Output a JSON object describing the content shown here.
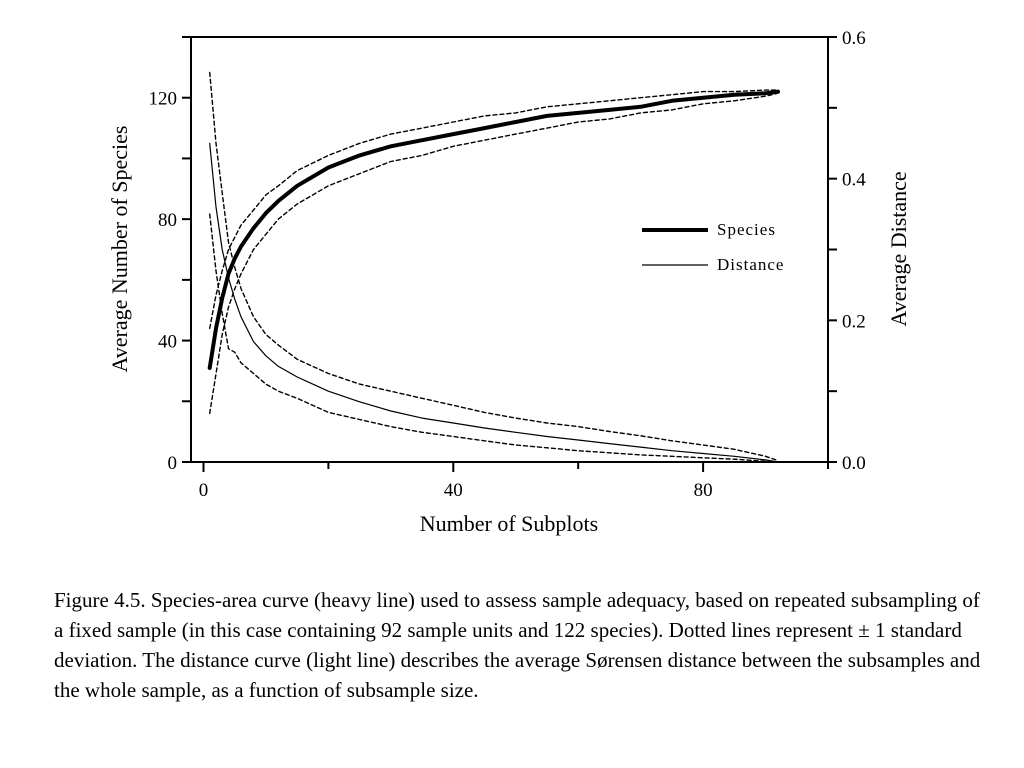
{
  "chart_data": {
    "type": "line",
    "xlabel": "Number of Subplots",
    "ylabel_left": "Average Number of Species",
    "ylabel_right": "Average Distance",
    "xlim": [
      -2,
      100
    ],
    "ylim_left": [
      0,
      140
    ],
    "ylim_right": [
      0,
      0.6
    ],
    "x_ticks": [
      0,
      40,
      80
    ],
    "y_left_ticks": [
      0,
      40,
      80,
      120
    ],
    "y_right_ticks": [
      "0.0",
      "0.2",
      "0.4",
      "0.6"
    ],
    "legend": {
      "placement": "center-right",
      "entries": [
        {
          "label": "Species",
          "style": "heavy"
        },
        {
          "label": "Distance",
          "style": "light"
        }
      ]
    },
    "series": [
      {
        "name": "Species",
        "axis": "left",
        "style": "heavy",
        "x": [
          1,
          2,
          3,
          4,
          5,
          6,
          8,
          10,
          12,
          15,
          20,
          25,
          30,
          35,
          40,
          45,
          50,
          55,
          60,
          65,
          70,
          75,
          80,
          85,
          90,
          92
        ],
        "y": [
          31,
          44,
          54,
          62,
          67,
          71,
          77,
          82,
          86,
          91,
          97,
          101,
          104,
          106,
          108,
          110,
          112,
          114,
          115,
          116,
          117,
          119,
          120,
          121,
          121.5,
          122
        ]
      },
      {
        "name": "Species + 1 SD",
        "axis": "left",
        "style": "dotted",
        "x": [
          1,
          2,
          3,
          4,
          5,
          6,
          8,
          10,
          12,
          15,
          20,
          25,
          30,
          35,
          40,
          45,
          50,
          55,
          60,
          65,
          70,
          75,
          80,
          85,
          90,
          92
        ],
        "y": [
          44,
          55,
          63,
          70,
          74,
          78,
          83,
          88,
          91,
          96,
          101,
          105,
          108,
          110,
          112,
          114,
          115,
          117,
          118,
          119,
          120,
          121,
          122,
          122,
          122.5,
          122.5
        ]
      },
      {
        "name": "Species - 1 SD",
        "axis": "left",
        "style": "dotted",
        "x": [
          1,
          2,
          3,
          4,
          5,
          6,
          8,
          10,
          12,
          15,
          20,
          25,
          30,
          35,
          40,
          45,
          50,
          55,
          60,
          65,
          70,
          75,
          80,
          85,
          90,
          92
        ],
        "y": [
          16,
          29,
          42,
          51,
          57,
          62,
          70,
          75,
          80,
          85,
          91,
          95,
          99,
          101,
          104,
          106,
          108,
          110,
          112,
          113,
          115,
          116,
          118,
          119,
          120.5,
          121.5
        ]
      },
      {
        "name": "Distance",
        "axis": "right",
        "style": "light",
        "x": [
          1,
          2,
          3,
          4,
          5,
          6,
          8,
          10,
          12,
          15,
          20,
          25,
          30,
          35,
          40,
          45,
          50,
          55,
          60,
          65,
          70,
          75,
          80,
          85,
          90,
          92
        ],
        "y": [
          0.45,
          0.36,
          0.3,
          0.26,
          0.23,
          0.205,
          0.17,
          0.15,
          0.135,
          0.12,
          0.1,
          0.085,
          0.072,
          0.062,
          0.055,
          0.048,
          0.042,
          0.036,
          0.031,
          0.026,
          0.021,
          0.016,
          0.012,
          0.008,
          0.003,
          0.0
        ]
      },
      {
        "name": "Distance + 1 SD",
        "axis": "right",
        "style": "dotted",
        "x": [
          1,
          2,
          3,
          4,
          5,
          6,
          8,
          10,
          12,
          15,
          20,
          25,
          30,
          35,
          40,
          45,
          50,
          55,
          60,
          65,
          70,
          75,
          80,
          85,
          90,
          92
        ],
        "y": [
          0.55,
          0.45,
          0.38,
          0.31,
          0.275,
          0.245,
          0.205,
          0.18,
          0.165,
          0.145,
          0.125,
          0.11,
          0.1,
          0.09,
          0.08,
          0.07,
          0.062,
          0.055,
          0.05,
          0.043,
          0.037,
          0.03,
          0.024,
          0.018,
          0.008,
          0.002
        ]
      },
      {
        "name": "Distance - 1 SD",
        "axis": "right",
        "style": "dotted",
        "x": [
          1,
          2,
          3,
          4,
          5,
          6,
          8,
          10,
          12,
          15,
          20,
          25,
          30,
          35,
          40,
          45,
          50,
          55,
          60,
          65,
          70,
          75,
          80,
          85,
          90,
          92
        ],
        "y": [
          0.35,
          0.27,
          0.21,
          0.16,
          0.155,
          0.14,
          0.125,
          0.11,
          0.1,
          0.09,
          0.07,
          0.06,
          0.05,
          0.042,
          0.036,
          0.03,
          0.024,
          0.02,
          0.016,
          0.013,
          0.01,
          0.008,
          0.006,
          0.004,
          0.001,
          0.0
        ]
      }
    ]
  },
  "caption": "Figure 4.5.  Species-area curve (heavy line) used to assess sample adequacy, based on repeated subsampling of a fixed sample (in this case containing 92 sample units and 122 species).  Dotted lines represent ± 1 standard deviation.  The distance curve (light line) describes the average Sørensen distance between the subsamples and the whole sample, as a function of subsample size."
}
